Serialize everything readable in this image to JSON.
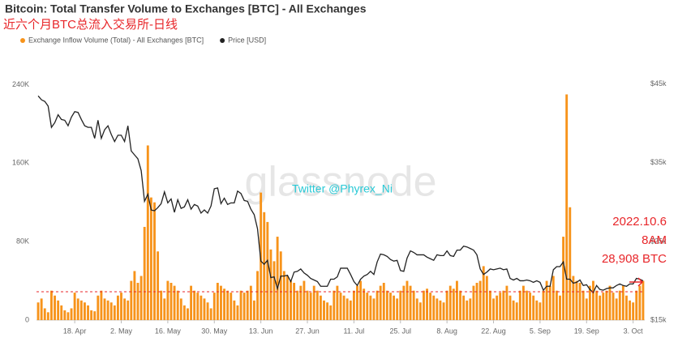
{
  "chart_data": {
    "type": "bar-line",
    "title": "Bitcoin: Total Transfer Volume to Exchanges [BTC] - All Exchanges",
    "subtitle": "近六个月BTC总流入交易所-日线",
    "watermark": "glassnode",
    "overlay_text": "Twitter @Phyrex_Ni",
    "annotation": {
      "lines": [
        "2022.10.6",
        "8AM",
        "28,908 BTC"
      ],
      "value": 28908,
      "color": "#e8262a"
    },
    "grid": false,
    "categories": [
      null,
      null,
      null,
      null,
      null,
      null,
      null,
      null,
      null,
      null,
      null,
      "18. Apr",
      null,
      null,
      null,
      null,
      null,
      null,
      null,
      null,
      null,
      null,
      null,
      null,
      null,
      "2. May",
      null,
      null,
      null,
      null,
      null,
      null,
      null,
      null,
      null,
      null,
      null,
      null,
      null,
      "16. May",
      null,
      null,
      null,
      null,
      null,
      null,
      null,
      null,
      null,
      null,
      null,
      null,
      null,
      "30. May",
      null,
      null,
      null,
      null,
      null,
      null,
      null,
      null,
      null,
      null,
      null,
      null,
      null,
      "13. Jun",
      null,
      null,
      null,
      null,
      null,
      null,
      null,
      null,
      null,
      null,
      null,
      null,
      null,
      "27. Jun",
      null,
      null,
      null,
      null,
      null,
      null,
      null,
      null,
      null,
      null,
      null,
      null,
      null,
      "11. Jul",
      null,
      null,
      null,
      null,
      null,
      null,
      null,
      null,
      null,
      null,
      null,
      null,
      null,
      "25. Jul",
      null,
      null,
      null,
      null,
      null,
      null,
      null,
      null,
      null,
      null,
      null,
      null,
      null,
      "8. Aug",
      null,
      null,
      null,
      null,
      null,
      null,
      null,
      null,
      null,
      null,
      null,
      null,
      null,
      "22. Aug",
      null,
      null,
      null,
      null,
      null,
      null,
      null,
      null,
      null,
      null,
      null,
      null,
      null,
      "5. Sep",
      null,
      null,
      null,
      null,
      null,
      null,
      null,
      null,
      null,
      null,
      null,
      null,
      null,
      "19. Sep",
      null,
      null,
      null,
      null,
      null,
      null,
      null,
      null,
      null,
      null,
      null,
      null,
      null,
      "3. Oct",
      null,
      null,
      null
    ],
    "ylim": [
      0,
      275000
    ],
    "yticks": [
      0,
      {
        "value": 80000,
        "label": "80K"
      },
      {
        "value": 160000,
        "label": "160K"
      },
      {
        "value": 240000,
        "label": "240K"
      }
    ],
    "y2lim": [
      15000,
      49300
    ],
    "y2ticks": [
      {
        "value": 15000,
        "label": "$15k"
      },
      {
        "value": 25000,
        "label": "$25k"
      },
      {
        "value": 35000,
        "label": "$35k"
      },
      {
        "value": 45000,
        "label": "$45k"
      }
    ],
    "series": [
      {
        "name": "Exchange Inflow Volume (Total) - All Exchanges [BTC]",
        "type": "bar",
        "color": "#f7931a",
        "values": [
          18000,
          22000,
          12000,
          8000,
          30000,
          25000,
          20000,
          15000,
          10000,
          8000,
          12000,
          28000,
          22000,
          20000,
          18000,
          15000,
          10000,
          9000,
          25000,
          30000,
          22000,
          20000,
          18000,
          15000,
          25000,
          28000,
          22000,
          20000,
          40000,
          50000,
          38000,
          45000,
          95000,
          178000,
          125000,
          120000,
          70000,
          30000,
          22000,
          40000,
          38000,
          35000,
          30000,
          22000,
          15000,
          12000,
          35000,
          30000,
          28000,
          25000,
          22000,
          18000,
          12000,
          28000,
          38000,
          35000,
          32000,
          30000,
          28000,
          20000,
          15000,
          30000,
          28000,
          30000,
          35000,
          20000,
          50000,
          130000,
          110000,
          100000,
          72000,
          60000,
          85000,
          70000,
          50000,
          45000,
          40000,
          38000,
          30000,
          35000,
          40000,
          30000,
          28000,
          35000,
          30000,
          25000,
          20000,
          18000,
          15000,
          30000,
          35000,
          28000,
          25000,
          22000,
          20000,
          30000,
          35000,
          40000,
          32000,
          28000,
          25000,
          22000,
          30000,
          35000,
          38000,
          30000,
          28000,
          25000,
          22000,
          30000,
          35000,
          40000,
          35000,
          30000,
          22000,
          18000,
          30000,
          32000,
          28000,
          25000,
          22000,
          20000,
          18000,
          30000,
          35000,
          32000,
          40000,
          30000,
          25000,
          20000,
          22000,
          35000,
          38000,
          40000,
          55000,
          45000,
          30000,
          22000,
          25000,
          28000,
          30000,
          35000,
          25000,
          20000,
          18000,
          30000,
          35000,
          30000,
          28000,
          25000,
          20000,
          18000,
          30000,
          40000,
          35000,
          45000,
          30000,
          25000,
          85000,
          230000,
          115000,
          45000,
          40000,
          38000,
          30000,
          22000,
          35000,
          40000,
          30000,
          25000,
          28000,
          30000,
          35000,
          28000,
          22000,
          30000,
          35000,
          25000,
          20000,
          18000,
          30000,
          35000,
          40000
        ]
      },
      {
        "name": "Price [USD]",
        "type": "line",
        "axis": "y2",
        "color": "#222222",
        "values": [
          43500,
          43000,
          42800,
          42200,
          39500,
          40100,
          41100,
          40500,
          40400,
          39700,
          40800,
          41500,
          41400,
          40500,
          39700,
          39500,
          39500,
          38100,
          40400,
          38100,
          39200,
          39700,
          38600,
          37700,
          38500,
          38500,
          37700,
          39700,
          36500,
          36000,
          35500,
          34000,
          30100,
          31000,
          29000,
          28900,
          29300,
          29800,
          31300,
          29900,
          30400,
          28700,
          30300,
          29200,
          29400,
          30300,
          29100,
          29700,
          29500,
          28600,
          29000,
          28600,
          29500,
          31700,
          31800,
          29800,
          30500,
          29700,
          29900,
          29900,
          31400,
          31100,
          30200,
          30100,
          29100,
          28400,
          26600,
          22500,
          22100,
          22600,
          20400,
          20500,
          19000,
          20600,
          20600,
          20700,
          19900,
          21100,
          21200,
          21500,
          21000,
          20700,
          20300,
          20100,
          19900,
          19300,
          19300,
          19300,
          20200,
          20200,
          20500,
          21600,
          21600,
          21600,
          20800,
          19900,
          19400,
          20200,
          20600,
          20800,
          21200,
          20800,
          22400,
          23400,
          23300,
          23100,
          22700,
          22500,
          22600,
          21300,
          21200,
          22900,
          23800,
          23600,
          23300,
          23300,
          23300,
          23000,
          22800,
          22600,
          23300,
          23200,
          23200,
          23800,
          23200,
          23100,
          23900,
          23900,
          24400,
          24300,
          24100,
          23900,
          23300,
          21500,
          20800,
          21100,
          21500,
          21400,
          21500,
          21600,
          21400,
          21500,
          20300,
          20100,
          20300,
          20000,
          20000,
          20100,
          20000,
          19800,
          20000,
          19800,
          18800,
          19300,
          19300,
          21400,
          21800,
          21800,
          22400,
          20200,
          20200,
          19700,
          19800,
          20100,
          19400,
          19500,
          18900,
          18500,
          19400,
          18900,
          18800,
          19000,
          19100,
          19100,
          19400,
          19600,
          19400,
          19300,
          19600,
          19600,
          20300,
          20200,
          20000
        ]
      }
    ]
  }
}
